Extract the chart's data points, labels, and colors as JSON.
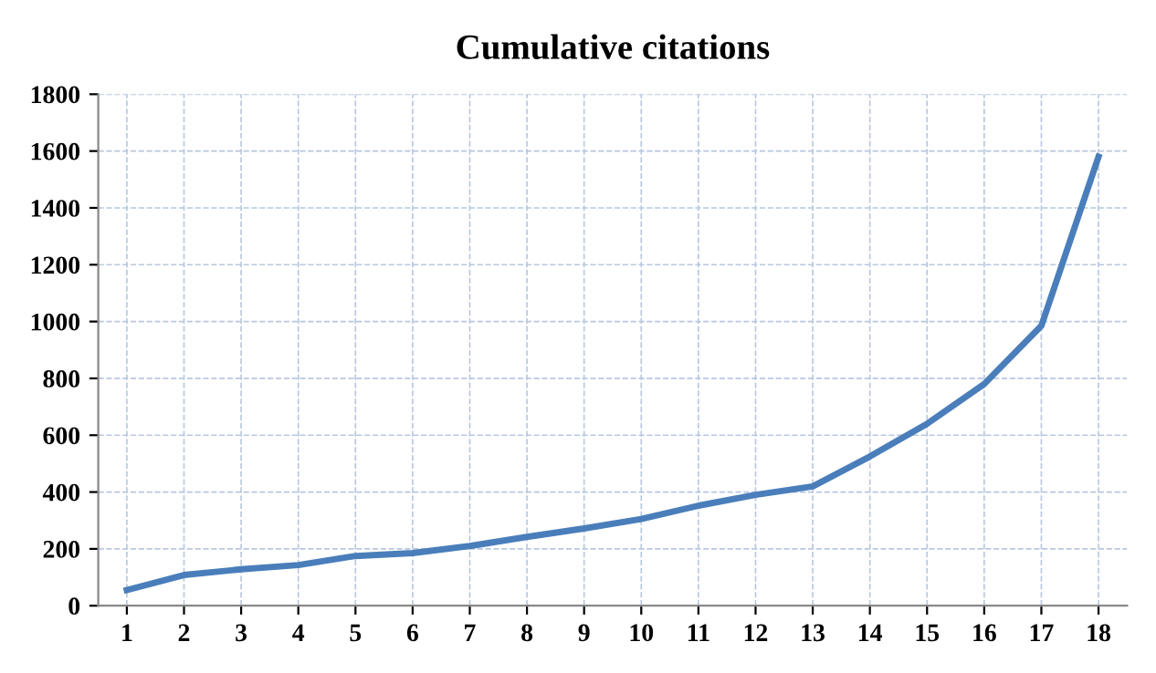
{
  "chart_data": {
    "type": "line",
    "title": "Cumulative citations",
    "categories": [
      "1",
      "2",
      "3",
      "4",
      "5",
      "6",
      "7",
      "8",
      "9",
      "10",
      "11",
      "12",
      "13",
      "14",
      "15",
      "16",
      "17",
      "18"
    ],
    "series": [
      {
        "color": "#4a7ebb",
        "values": [
          55,
          108,
          128,
          143,
          175,
          185,
          210,
          242,
          272,
          305,
          352,
          390,
          420,
          525,
          640,
          780,
          985,
          1580
        ]
      }
    ],
    "ylim": [
      0,
      1800
    ],
    "yticks": [
      0,
      200,
      400,
      600,
      800,
      1000,
      1200,
      1400,
      1600,
      1800
    ],
    "grid": true,
    "marker": "none",
    "line_style": "solid"
  }
}
